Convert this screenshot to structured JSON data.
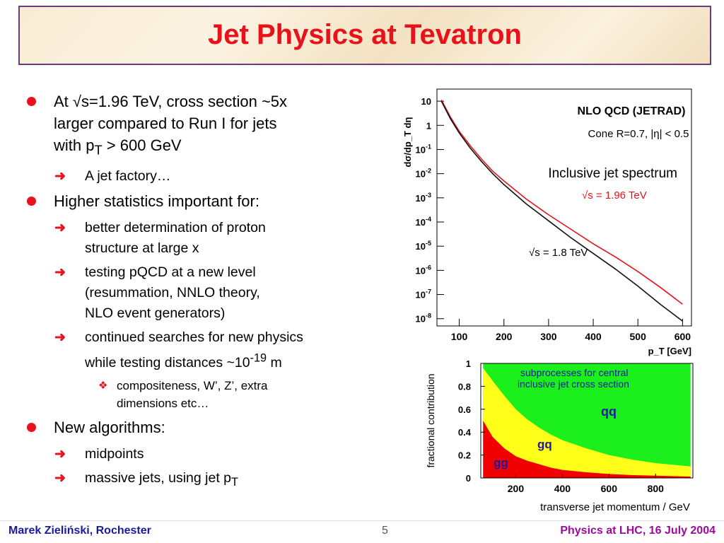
{
  "slide": {
    "title": "Jet Physics at Tevatron",
    "bullets": [
      {
        "level": 1,
        "icon": "red-dot-icon",
        "lines": [
          "At √s=1.96 TeV, cross section ~5x",
          "larger compared to Run I for jets",
          "with p<sub>T</sub> > 600 GeV"
        ]
      },
      {
        "level": 2,
        "icon": "right-arrow-icon",
        "lines": [
          "A jet factory…"
        ]
      },
      {
        "level": 1,
        "icon": "red-dot-icon",
        "lines": [
          "Higher statistics important for:"
        ]
      },
      {
        "level": 2,
        "icon": "right-arrow-icon",
        "lines": [
          "better determination of proton",
          "structure at large x"
        ]
      },
      {
        "level": 2,
        "icon": "right-arrow-icon",
        "lines": [
          "testing pQCD at a new level",
          "(resummation, NNLO theory,",
          "NLO event generators)"
        ]
      },
      {
        "level": 2,
        "icon": "right-arrow-icon",
        "lines": [
          "continued searches for new physics",
          "while testing distances ~10<sup>-19</sup> m"
        ]
      },
      {
        "level": 3,
        "icon": "diamond-icon",
        "lines": [
          "compositeness, W’, Z’, extra",
          "dimensions etc…"
        ]
      },
      {
        "level": 1,
        "icon": "red-dot-icon",
        "lines": [
          "New algorithms:"
        ]
      },
      {
        "level": 2,
        "icon": "right-arrow-icon",
        "lines": [
          "midpoints"
        ]
      },
      {
        "level": 2,
        "icon": "right-arrow-icon",
        "lines": [
          "massive jets, using jet p<sub>T</sub>"
        ]
      }
    ]
  },
  "footer": {
    "author": "Marek Zieliński, Rochester",
    "page": "5",
    "event": "Physics at LHC,  16 July 2004"
  },
  "colors": {
    "title": "#e8121a",
    "accent": "#e8121a",
    "footer_left": "#1a1aa0",
    "footer_right": "#9c0a9c",
    "green": "#1cf01c",
    "yellow": "#ffff1a",
    "red": "#f00000"
  },
  "chart_data": [
    {
      "type": "line",
      "title": "NLO QCD (JETRAD)",
      "subtitle": "Cone R=0.7, |η| < 0.5",
      "annotation": "Inclusive jet spectrum",
      "xlabel": "p_T [GeV]",
      "ylabel": "dσ/dp_T dη",
      "xlim": [
        50,
        620
      ],
      "ylim_log10": [
        -8.3,
        1.5
      ],
      "yscale": "log",
      "xticks": [
        100,
        200,
        300,
        400,
        500,
        600
      ],
      "yticks_log10": [
        1,
        0,
        -1,
        -2,
        -3,
        -4,
        -5,
        -6,
        -7,
        -8
      ],
      "series": [
        {
          "name": "√s = 1.96 TeV",
          "color": "#e8121a",
          "x": [
            60,
            80,
            100,
            125,
            150,
            175,
            200,
            250,
            300,
            350,
            400,
            450,
            500,
            550,
            600
          ],
          "log10y": [
            1.05,
            0.35,
            -0.25,
            -0.85,
            -1.4,
            -1.9,
            -2.3,
            -3.05,
            -3.7,
            -4.3,
            -4.9,
            -5.45,
            -6.05,
            -6.7,
            -7.4
          ]
        },
        {
          "name": "√s = 1.8 TeV",
          "color": "#111111",
          "x": [
            60,
            80,
            100,
            125,
            150,
            175,
            200,
            250,
            300,
            350,
            400,
            450,
            500,
            550,
            600
          ],
          "log10y": [
            1.0,
            0.28,
            -0.32,
            -0.95,
            -1.5,
            -2.0,
            -2.45,
            -3.25,
            -3.95,
            -4.65,
            -5.3,
            -5.95,
            -6.65,
            -7.4,
            -8.1
          ]
        }
      ]
    },
    {
      "type": "area",
      "title": "subprocesses for central inclusive jet cross section",
      "xlabel": "transverse jet momentum / GeV",
      "ylabel": "fractional contribution",
      "xlim": [
        50,
        960
      ],
      "ylim": [
        0,
        1
      ],
      "xticks": [
        200,
        400,
        600,
        800
      ],
      "yticks": [
        0,
        0.2,
        0.4,
        0.6,
        0.8,
        1
      ],
      "stack_order": [
        "gg",
        "gq",
        "qq"
      ],
      "x": [
        60,
        100,
        150,
        200,
        250,
        300,
        350,
        400,
        500,
        600,
        700,
        800,
        900,
        950
      ],
      "series": [
        {
          "name": "gg",
          "cumulative": [
            0.5,
            0.36,
            0.26,
            0.19,
            0.15,
            0.12,
            0.09,
            0.07,
            0.05,
            0.035,
            0.025,
            0.02,
            0.015,
            0.012
          ]
        },
        {
          "name": "gq",
          "cumulative": [
            0.96,
            0.85,
            0.72,
            0.6,
            0.51,
            0.44,
            0.38,
            0.33,
            0.26,
            0.2,
            0.16,
            0.13,
            0.11,
            0.1
          ]
        },
        {
          "name": "qq",
          "cumulative": [
            1,
            1,
            1,
            1,
            1,
            1,
            1,
            1,
            1,
            1,
            1,
            1,
            1,
            1
          ]
        }
      ]
    }
  ]
}
